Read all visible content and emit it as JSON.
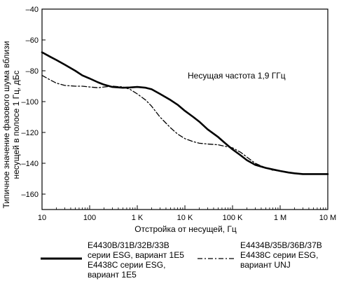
{
  "chart_data": {
    "type": "line",
    "xlabel": "Отстройка от несущей, Гц",
    "ylabel": [
      "Типичное значение фазового шума вблизи",
      "несущей в полосе 1 Гц, дБс"
    ],
    "x_scale": "log",
    "xlim": [
      10,
      10000000
    ],
    "ylim": [
      -170,
      -40
    ],
    "grid": false,
    "x_ticks": [
      10,
      100,
      1000,
      10000,
      100000,
      1000000,
      10000000
    ],
    "x_tick_labels": [
      "10",
      "100",
      "1 K",
      "10 K",
      "100 K",
      "1 M",
      "10 M"
    ],
    "y_ticks": [
      -40,
      -60,
      -80,
      -100,
      -120,
      -140,
      -160
    ],
    "y_tick_labels": [
      "–40",
      "–60",
      "–80",
      "–100",
      "–120",
      "–140",
      "–160"
    ],
    "annotation": "Несущая частота 1,9 ГГц",
    "legend_placement": "bottom",
    "series": [
      {
        "name": "E4430B/31B/32B/33B серии ESG, вариант 1E5 E4438C серии ESG, вариант 1E5",
        "legend_lines": [
          "E4430B/31B/32B/33B",
          "серии ESG, вариант 1E5",
          "E4438C серии ESG,",
          "вариант 1E5"
        ],
        "style": "solid",
        "x": [
          10,
          15,
          20,
          30,
          50,
          70,
          100,
          150,
          200,
          300,
          500,
          700,
          1000,
          1500,
          2000,
          3000,
          5000,
          7000,
          10000,
          15000,
          20000,
          30000,
          50000,
          70000,
          100000,
          150000,
          200000,
          300000,
          500000,
          700000,
          1000000,
          1500000,
          2000000,
          3000000,
          5000000,
          7000000,
          10000000
        ],
        "y": [
          -68,
          -71,
          -73,
          -76,
          -80,
          -83,
          -85,
          -87.5,
          -89,
          -90.5,
          -91,
          -90.8,
          -90.5,
          -91,
          -92,
          -95,
          -99,
          -102,
          -106,
          -110,
          -113,
          -118,
          -123,
          -127,
          -131,
          -135,
          -138,
          -141,
          -143,
          -144,
          -145,
          -146,
          -146.5,
          -147,
          -147,
          -147,
          -147
        ]
      },
      {
        "name": "E4434B/35B/36B/37B E4438C серии ESG, вариант UNJ",
        "legend_lines": [
          "E4434B/35B/36B/37B",
          "E4438C серии ESG,",
          "вариант UNJ"
        ],
        "style": "dash-dot",
        "x": [
          10,
          15,
          20,
          30,
          50,
          70,
          100,
          150,
          200,
          300,
          500,
          700,
          1000,
          1500,
          2000,
          3000,
          5000,
          7000,
          10000,
          15000,
          20000,
          30000,
          50000,
          70000,
          100000,
          150000,
          200000,
          300000,
          500000,
          700000,
          1000000,
          1500000,
          2000000,
          3000000,
          5000000,
          7000000,
          10000000
        ],
        "y": [
          -83,
          -86,
          -88,
          -89.5,
          -90,
          -90,
          -90.5,
          -91,
          -90.5,
          -90,
          -90.5,
          -92,
          -95,
          -99,
          -103,
          -110,
          -117,
          -121,
          -124,
          -126,
          -127,
          -127.5,
          -128,
          -129,
          -130,
          -133,
          -136,
          -140,
          -143,
          -144.5,
          -145,
          -146,
          -146.5,
          -147,
          -147,
          -147,
          -147
        ]
      }
    ]
  }
}
